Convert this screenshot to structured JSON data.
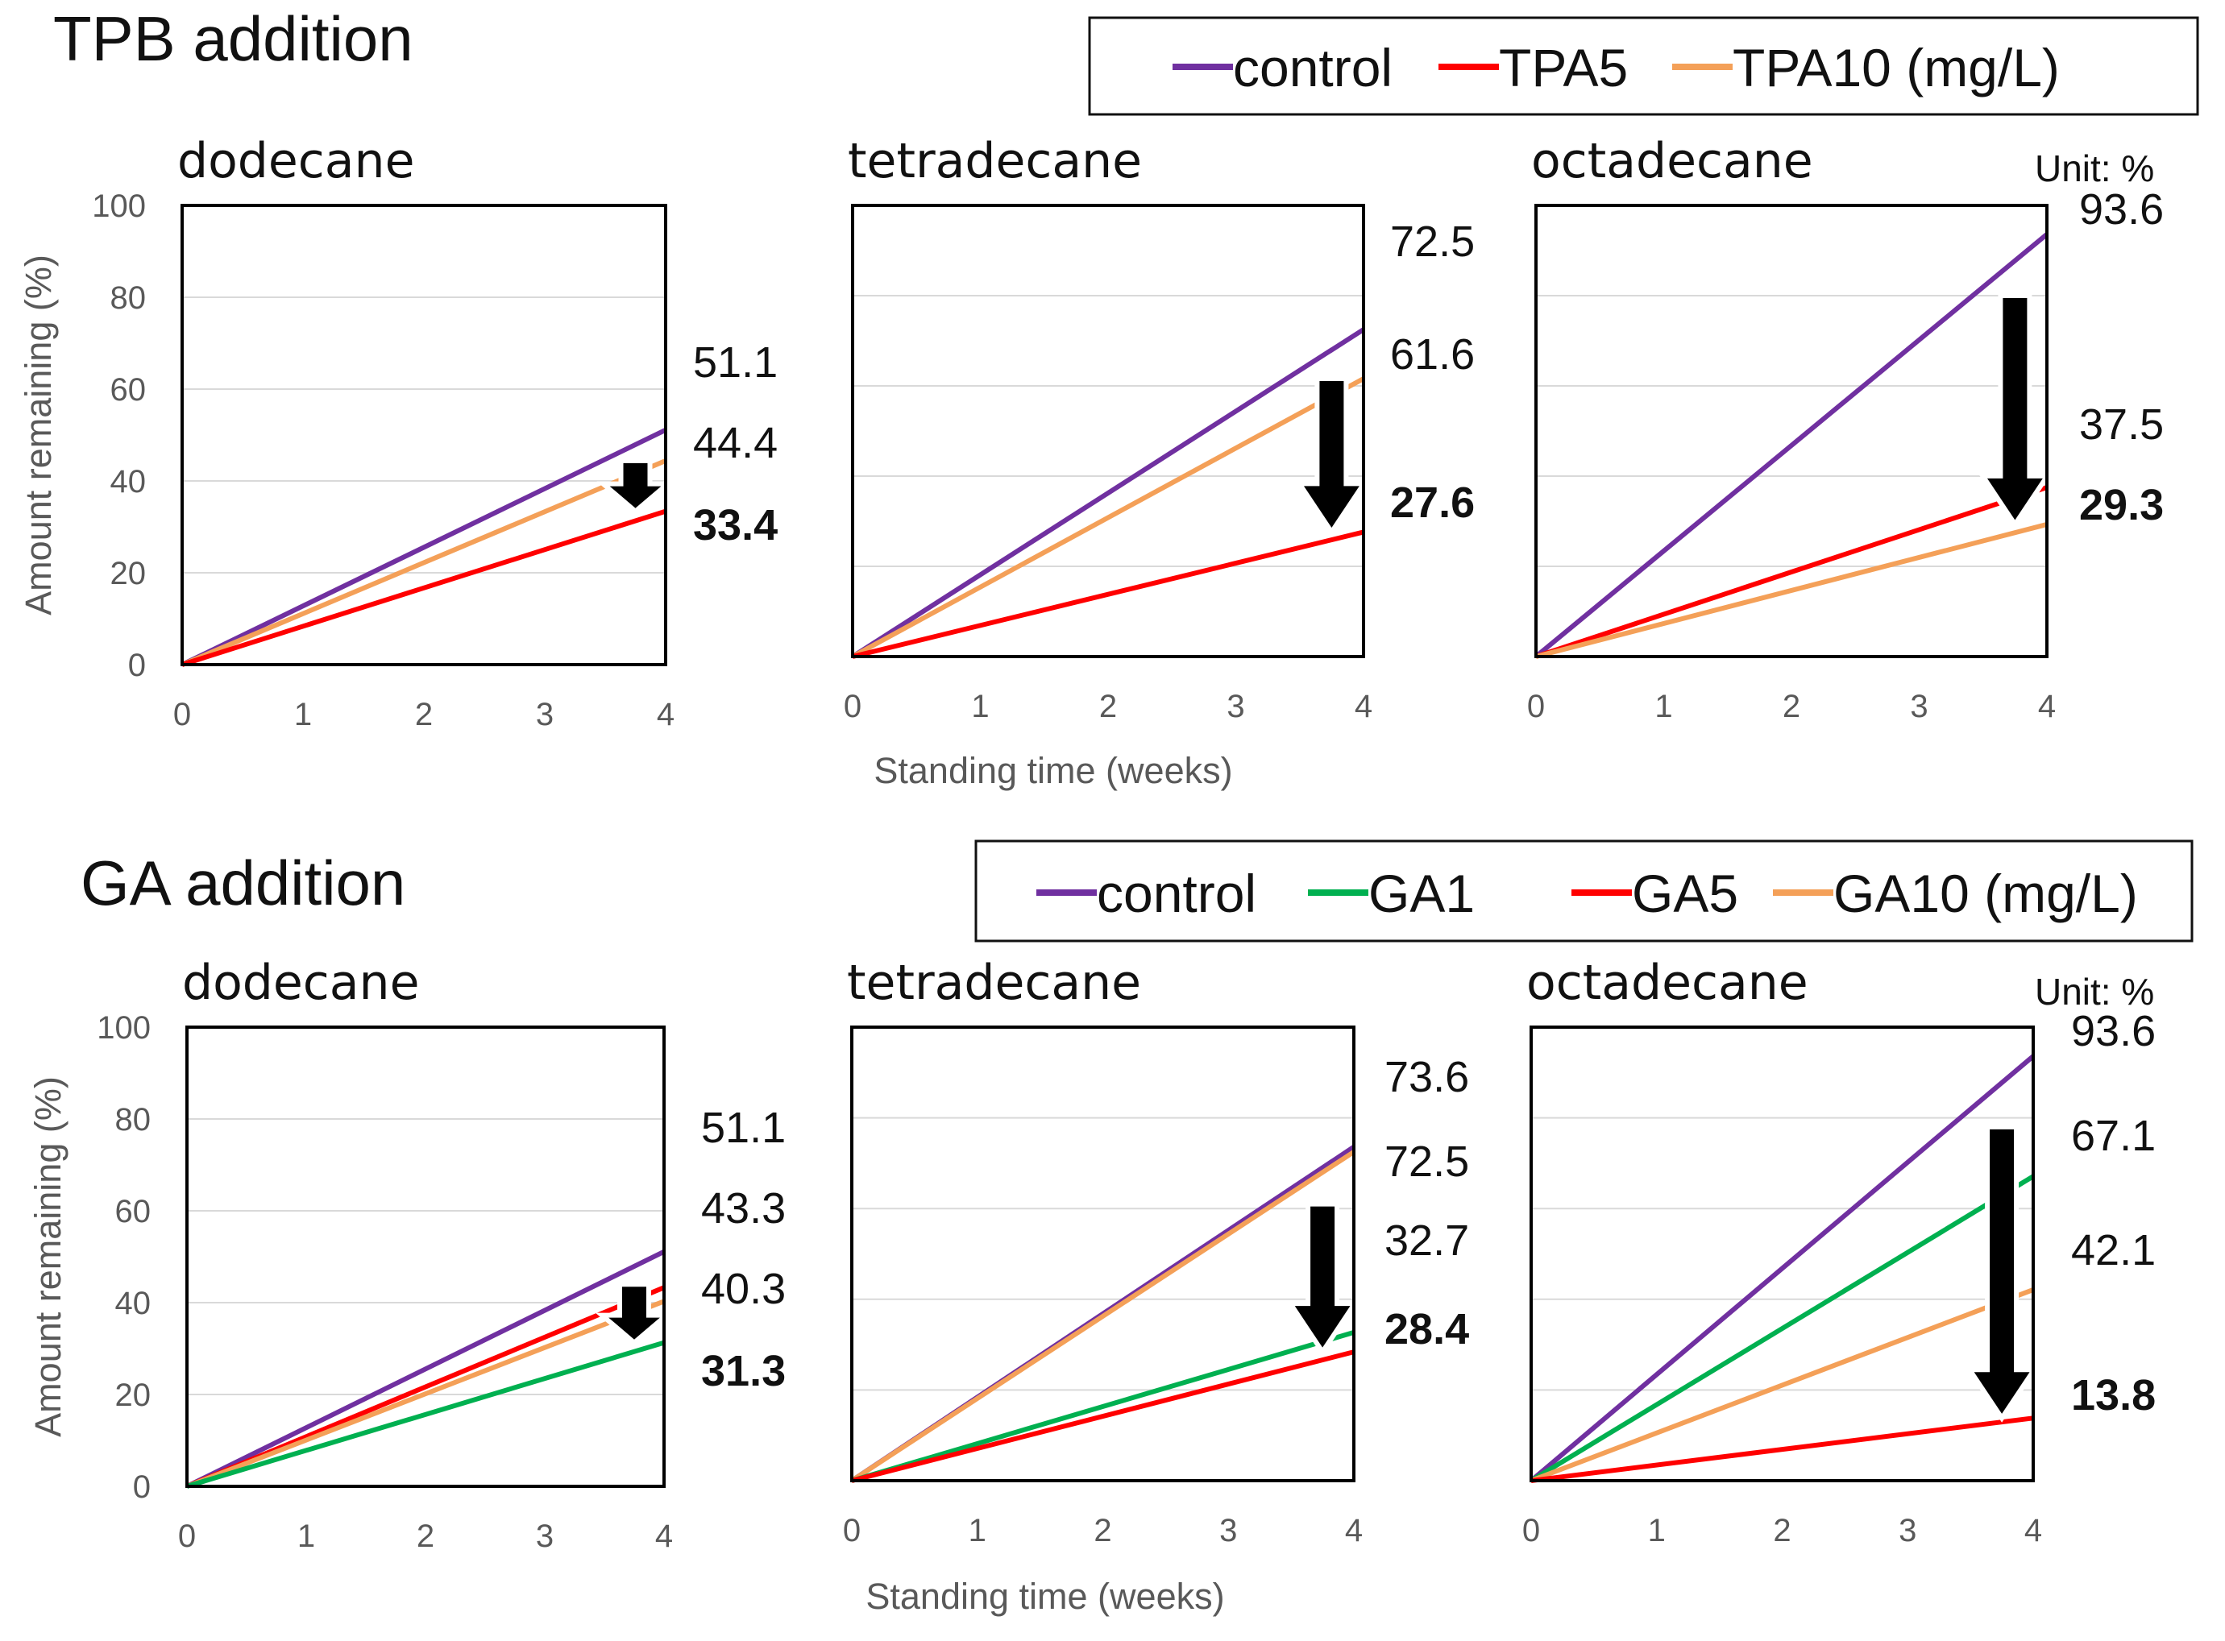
{
  "sections": [
    {
      "title": "TPB addition",
      "legend": [
        {
          "label": "control",
          "color": "#7030A0"
        },
        {
          "label": "TPA5",
          "color": "#FF0000"
        },
        {
          "label": "TPA10 (mg/L)",
          "color": "#F4A058"
        }
      ],
      "xlabel": "Standing time (weeks)",
      "ylabel": "Amount remaining (%)",
      "unit": "Unit: %"
    },
    {
      "title": "GA addition",
      "legend": [
        {
          "label": "control",
          "color": "#7030A0"
        },
        {
          "label": "GA1",
          "color": "#00B050"
        },
        {
          "label": "GA5",
          "color": "#FF0000"
        },
        {
          "label": "GA10 (mg/L)",
          "color": "#F4A058"
        }
      ],
      "xlabel": "Standing time (weeks)",
      "ylabel": "Amount remaining (%)",
      "unit": "Unit: %"
    }
  ],
  "chart_data": [
    {
      "type": "line",
      "section": "TPB addition",
      "title": "dodecane",
      "x": [
        0,
        4
      ],
      "xlim": [
        0,
        4
      ],
      "ylim": [
        0,
        100
      ],
      "xticks": [
        "0",
        "1",
        "2",
        "3",
        "4"
      ],
      "yticks": [
        "0",
        "20",
        "40",
        "60",
        "80",
        "100"
      ],
      "ylabel": "Amount remaining (%)",
      "xlabel": "",
      "series": [
        {
          "name": "control",
          "color": "#7030A0",
          "values": [
            0,
            51.1
          ]
        },
        {
          "name": "TPA10 (mg/L)",
          "color": "#F4A058",
          "values": [
            0,
            44.4
          ]
        },
        {
          "name": "TPA5",
          "color": "#FF0000",
          "values": [
            0,
            33.4
          ]
        }
      ],
      "labels": [
        {
          "text": "51.1",
          "bold": false
        },
        {
          "text": "44.4",
          "bold": false
        },
        {
          "text": "33.4",
          "bold": true
        }
      ],
      "arrow": {
        "from": 44.4,
        "to": 33.4
      }
    },
    {
      "type": "line",
      "section": "TPB addition",
      "title": "tetradecane",
      "x": [
        0,
        4
      ],
      "xlim": [
        0,
        4
      ],
      "ylim": [
        0,
        100
      ],
      "xticks": [
        "0",
        "1",
        "2",
        "3",
        "4"
      ],
      "yticks": [],
      "ylabel": "",
      "xlabel": "Standing time (weeks)",
      "series": [
        {
          "name": "control",
          "color": "#7030A0",
          "values": [
            0,
            72.5
          ]
        },
        {
          "name": "TPA10 (mg/L)",
          "color": "#F4A058",
          "values": [
            0,
            61.6
          ]
        },
        {
          "name": "TPA5",
          "color": "#FF0000",
          "values": [
            0,
            27.6
          ]
        }
      ],
      "labels": [
        {
          "text": "72.5",
          "bold": false
        },
        {
          "text": "61.6",
          "bold": false
        },
        {
          "text": "27.6",
          "bold": true
        }
      ],
      "arrow": {
        "from": 61.6,
        "to": 27.6
      }
    },
    {
      "type": "line",
      "section": "TPB addition",
      "title": "octadecane",
      "x": [
        0,
        4
      ],
      "xlim": [
        0,
        4
      ],
      "ylim": [
        0,
        100
      ],
      "xticks": [
        "0",
        "1",
        "2",
        "3",
        "4"
      ],
      "yticks": [],
      "ylabel": "",
      "xlabel": "",
      "series": [
        {
          "name": "control",
          "color": "#7030A0",
          "values": [
            0,
            93.6
          ]
        },
        {
          "name": "TPA5",
          "color": "#FF0000",
          "values": [
            0,
            37.5
          ]
        },
        {
          "name": "TPA10 (mg/L)",
          "color": "#F4A058",
          "values": [
            0,
            29.3
          ]
        }
      ],
      "labels": [
        {
          "text": "93.6",
          "bold": false
        },
        {
          "text": "37.5",
          "bold": false
        },
        {
          "text": "29.3",
          "bold": true
        }
      ],
      "arrow": {
        "from": 80,
        "to": 29.3
      }
    },
    {
      "type": "line",
      "section": "GA addition",
      "title": "dodecane",
      "x": [
        0,
        4
      ],
      "xlim": [
        0,
        4
      ],
      "ylim": [
        0,
        100
      ],
      "xticks": [
        "0",
        "1",
        "2",
        "3",
        "4"
      ],
      "yticks": [
        "0",
        "20",
        "40",
        "60",
        "80",
        "100"
      ],
      "ylabel": "Amount remaining (%)",
      "xlabel": "",
      "series": [
        {
          "name": "control",
          "color": "#7030A0",
          "values": [
            0,
            51.1
          ]
        },
        {
          "name": "GA5",
          "color": "#FF0000",
          "values": [
            0,
            43.3
          ]
        },
        {
          "name": "GA10 (mg/L)",
          "color": "#F4A058",
          "values": [
            0,
            40.3
          ]
        },
        {
          "name": "GA1",
          "color": "#00B050",
          "values": [
            0,
            31.3
          ]
        }
      ],
      "labels": [
        {
          "text": "51.1",
          "bold": false
        },
        {
          "text": "43.3",
          "bold": false
        },
        {
          "text": "40.3",
          "bold": false
        },
        {
          "text": "31.3",
          "bold": true
        }
      ],
      "arrow": {
        "from": 44,
        "to": 31.3
      }
    },
    {
      "type": "line",
      "section": "GA addition",
      "title": "tetradecane",
      "x": [
        0,
        4
      ],
      "xlim": [
        0,
        4
      ],
      "ylim": [
        0,
        100
      ],
      "xticks": [
        "0",
        "1",
        "2",
        "3",
        "4"
      ],
      "yticks": [],
      "ylabel": "",
      "xlabel": "Standing time (weeks)",
      "series": [
        {
          "name": "control",
          "color": "#7030A0",
          "values": [
            0,
            73.6
          ]
        },
        {
          "name": "GA10 (mg/L)",
          "color": "#F4A058",
          "values": [
            0,
            72.5
          ]
        },
        {
          "name": "GA1",
          "color": "#00B050",
          "values": [
            0,
            32.7
          ]
        },
        {
          "name": "GA5",
          "color": "#FF0000",
          "values": [
            0,
            28.4
          ]
        }
      ],
      "labels": [
        {
          "text": "73.6",
          "bold": false
        },
        {
          "text": "72.5",
          "bold": false
        },
        {
          "text": "32.7",
          "bold": false
        },
        {
          "text": "28.4",
          "bold": true
        }
      ],
      "arrow": {
        "from": 61,
        "to": 28.4
      }
    },
    {
      "type": "line",
      "section": "GA addition",
      "title": "octadecane",
      "x": [
        0,
        4
      ],
      "xlim": [
        0,
        4
      ],
      "ylim": [
        0,
        100
      ],
      "xticks": [
        "0",
        "1",
        "2",
        "3",
        "4"
      ],
      "yticks": [],
      "ylabel": "",
      "xlabel": "",
      "series": [
        {
          "name": "control",
          "color": "#7030A0",
          "values": [
            0,
            93.6
          ]
        },
        {
          "name": "GA1",
          "color": "#00B050",
          "values": [
            0,
            67.1
          ]
        },
        {
          "name": "GA10 (mg/L)",
          "color": "#F4A058",
          "values": [
            0,
            42.1
          ]
        },
        {
          "name": "GA5",
          "color": "#FF0000",
          "values": [
            0,
            13.8
          ]
        }
      ],
      "labels": [
        {
          "text": "93.6",
          "bold": false
        },
        {
          "text": "67.1",
          "bold": false
        },
        {
          "text": "42.1",
          "bold": false
        },
        {
          "text": "13.8",
          "bold": true
        }
      ],
      "arrow": {
        "from": 78,
        "to": 13.8
      }
    }
  ]
}
